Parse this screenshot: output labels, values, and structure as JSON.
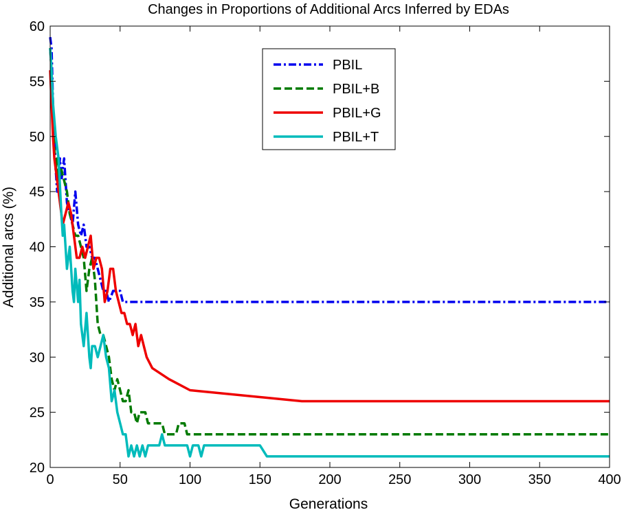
{
  "chart_data": {
    "type": "line",
    "title": "Changes in Proportions of Additional Arcs Inferred by EDAs",
    "xlabel": "Generations",
    "ylabel": "Additional arcs (%)",
    "xlim": [
      0,
      400
    ],
    "ylim": [
      20,
      60
    ],
    "xticks": [
      "0",
      "50",
      "100",
      "150",
      "200",
      "250",
      "300",
      "350",
      "400"
    ],
    "yticks": [
      "20",
      "25",
      "30",
      "35",
      "40",
      "45",
      "50",
      "55",
      "60"
    ],
    "grid": false,
    "legend_position": "top-center",
    "series": [
      {
        "name": "PBIL",
        "color": "#0000ee",
        "dash": "dash-dot",
        "points": [
          [
            0,
            59
          ],
          [
            1,
            58
          ],
          [
            2,
            53
          ],
          [
            3,
            50
          ],
          [
            4,
            47
          ],
          [
            5,
            45
          ],
          [
            7,
            48
          ],
          [
            8,
            46
          ],
          [
            10,
            48
          ],
          [
            12,
            44
          ],
          [
            14,
            43
          ],
          [
            16,
            42
          ],
          [
            18,
            45
          ],
          [
            20,
            42
          ],
          [
            22,
            41
          ],
          [
            24,
            42
          ],
          [
            26,
            40
          ],
          [
            28,
            40
          ],
          [
            30,
            39
          ],
          [
            32,
            39
          ],
          [
            34,
            38
          ],
          [
            36,
            37
          ],
          [
            38,
            36
          ],
          [
            40,
            36
          ],
          [
            42,
            35
          ],
          [
            45,
            36
          ],
          [
            48,
            36
          ],
          [
            50,
            36
          ],
          [
            52,
            35
          ],
          [
            100,
            35
          ],
          [
            200,
            35
          ],
          [
            300,
            35
          ],
          [
            400,
            35
          ]
        ]
      },
      {
        "name": "PBIL+B",
        "color": "#007a00",
        "dash": "dashed",
        "points": [
          [
            0,
            58
          ],
          [
            1,
            56
          ],
          [
            2,
            52
          ],
          [
            3,
            49
          ],
          [
            4,
            47
          ],
          [
            5,
            48
          ],
          [
            6,
            46
          ],
          [
            8,
            47
          ],
          [
            10,
            46
          ],
          [
            12,
            45
          ],
          [
            14,
            43
          ],
          [
            16,
            42
          ],
          [
            18,
            41
          ],
          [
            20,
            41
          ],
          [
            22,
            40
          ],
          [
            24,
            39
          ],
          [
            26,
            36
          ],
          [
            28,
            38
          ],
          [
            30,
            39
          ],
          [
            32,
            37
          ],
          [
            34,
            33
          ],
          [
            36,
            32
          ],
          [
            38,
            32
          ],
          [
            40,
            31
          ],
          [
            42,
            30
          ],
          [
            44,
            28
          ],
          [
            46,
            27
          ],
          [
            48,
            28
          ],
          [
            50,
            27
          ],
          [
            52,
            26
          ],
          [
            54,
            26
          ],
          [
            56,
            27
          ],
          [
            58,
            25
          ],
          [
            60,
            25
          ],
          [
            62,
            24
          ],
          [
            64,
            25
          ],
          [
            66,
            25
          ],
          [
            68,
            25
          ],
          [
            70,
            24
          ],
          [
            75,
            24
          ],
          [
            80,
            24
          ],
          [
            82,
            23
          ],
          [
            90,
            23
          ],
          [
            92,
            24
          ],
          [
            96,
            24
          ],
          [
            98,
            23
          ],
          [
            150,
            23
          ],
          [
            200,
            23
          ],
          [
            300,
            23
          ],
          [
            400,
            23
          ]
        ]
      },
      {
        "name": "PBIL+G",
        "color": "#ee0000",
        "dash": "solid",
        "points": [
          [
            0,
            56
          ],
          [
            1,
            53
          ],
          [
            2,
            50
          ],
          [
            3,
            48
          ],
          [
            5,
            46
          ],
          [
            7,
            44
          ],
          [
            9,
            42
          ],
          [
            11,
            43
          ],
          [
            13,
            44
          ],
          [
            15,
            43
          ],
          [
            17,
            41
          ],
          [
            19,
            39
          ],
          [
            21,
            39
          ],
          [
            23,
            40
          ],
          [
            25,
            39
          ],
          [
            27,
            40
          ],
          [
            29,
            41
          ],
          [
            31,
            38
          ],
          [
            33,
            39
          ],
          [
            35,
            39
          ],
          [
            37,
            38
          ],
          [
            39,
            35
          ],
          [
            41,
            36
          ],
          [
            43,
            38
          ],
          [
            45,
            38
          ],
          [
            47,
            36
          ],
          [
            49,
            35
          ],
          [
            51,
            34
          ],
          [
            53,
            34
          ],
          [
            55,
            33
          ],
          [
            57,
            33
          ],
          [
            59,
            32
          ],
          [
            61,
            33
          ],
          [
            63,
            31
          ],
          [
            65,
            32
          ],
          [
            67,
            31
          ],
          [
            69,
            30
          ],
          [
            73,
            29
          ],
          [
            85,
            28
          ],
          [
            100,
            27
          ],
          [
            180,
            26
          ],
          [
            200,
            26
          ],
          [
            300,
            26
          ],
          [
            400,
            26
          ]
        ]
      },
      {
        "name": "PBIL+T",
        "color": "#00bbbb",
        "dash": "solid",
        "points": [
          [
            0,
            58
          ],
          [
            1,
            56
          ],
          [
            2,
            53
          ],
          [
            4,
            50
          ],
          [
            6,
            48
          ],
          [
            8,
            43
          ],
          [
            9,
            41
          ],
          [
            10,
            42
          ],
          [
            12,
            38
          ],
          [
            14,
            40
          ],
          [
            16,
            36
          ],
          [
            17,
            35
          ],
          [
            18,
            38
          ],
          [
            20,
            35
          ],
          [
            21,
            37
          ],
          [
            22,
            33
          ],
          [
            24,
            31
          ],
          [
            26,
            34
          ],
          [
            28,
            30
          ],
          [
            29,
            29
          ],
          [
            30,
            31
          ],
          [
            32,
            31
          ],
          [
            34,
            30
          ],
          [
            36,
            31
          ],
          [
            38,
            32
          ],
          [
            40,
            30
          ],
          [
            42,
            29
          ],
          [
            44,
            26
          ],
          [
            46,
            27
          ],
          [
            48,
            25
          ],
          [
            50,
            24
          ],
          [
            52,
            23
          ],
          [
            54,
            23
          ],
          [
            56,
            21
          ],
          [
            58,
            22
          ],
          [
            60,
            21
          ],
          [
            62,
            22
          ],
          [
            64,
            21
          ],
          [
            66,
            22
          ],
          [
            68,
            21
          ],
          [
            70,
            22
          ],
          [
            78,
            22
          ],
          [
            80,
            23
          ],
          [
            82,
            22
          ],
          [
            98,
            22
          ],
          [
            100,
            21
          ],
          [
            102,
            22
          ],
          [
            106,
            22
          ],
          [
            108,
            21
          ],
          [
            110,
            22
          ],
          [
            150,
            22
          ],
          [
            155,
            21
          ],
          [
            200,
            21
          ],
          [
            300,
            21
          ],
          [
            400,
            21
          ]
        ]
      }
    ]
  }
}
